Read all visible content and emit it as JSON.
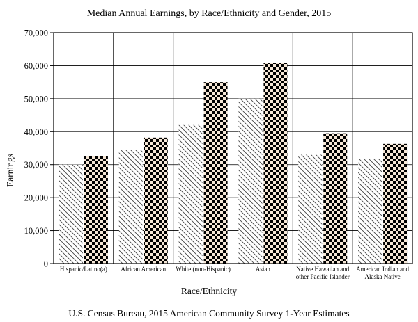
{
  "chart_data": {
    "type": "bar",
    "title": "Median Annual Earnings, by Race/Ethnicity and Gender, 2015",
    "xlabel": "Race/Ethnicity",
    "ylabel": "Earnings",
    "source": "U.S. Census Bureau, 2015 American Community Survey 1-Year Estimates",
    "ylim": [
      0,
      70000
    ],
    "yticks": [
      0,
      10000,
      20000,
      30000,
      40000,
      50000,
      60000,
      70000
    ],
    "ytick_labels": [
      "0",
      "10,000",
      "20,000",
      "30,000",
      "40,000",
      "50,000",
      "60,000",
      "70,000"
    ],
    "grid": "horizontal",
    "categories": [
      [
        "Hispanic/Latino(a)"
      ],
      [
        "African American"
      ],
      [
        "White (non-Hispanic)"
      ],
      [
        "Asian"
      ],
      [
        "Native Hawaiian and",
        "other Pacific Islander"
      ],
      [
        "American Indian and",
        "Alaska Native"
      ]
    ],
    "series": [
      {
        "pattern": "diagonal-hatch",
        "values": [
          30000,
          34500,
          42000,
          50000,
          33000,
          31800
        ]
      },
      {
        "pattern": "checkerboard",
        "values": [
          32500,
          38200,
          55000,
          60800,
          39500,
          36300
        ]
      }
    ]
  }
}
